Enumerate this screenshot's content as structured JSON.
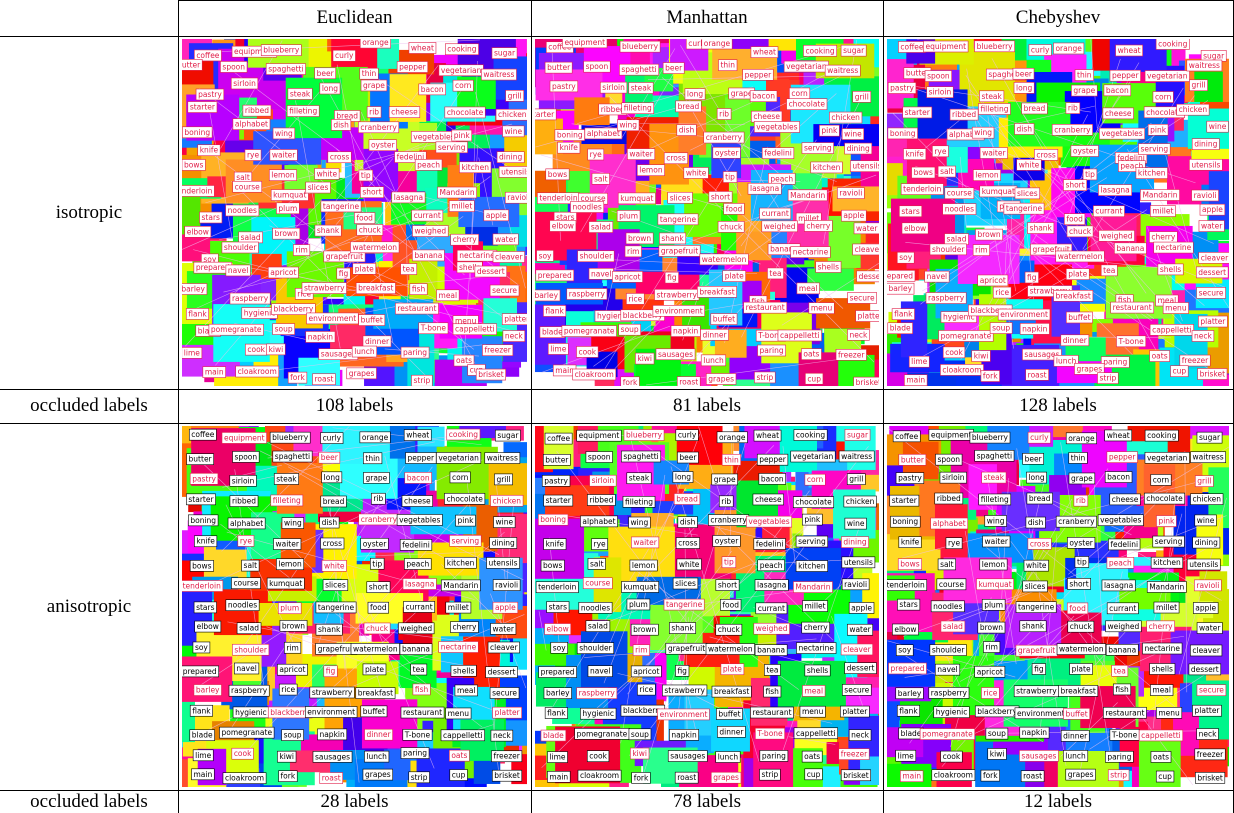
{
  "table": {
    "columns": [
      "Euclidean",
      "Manhattan",
      "Chebyshev"
    ],
    "rows": [
      {
        "label": "isotropic",
        "count_label": "occluded labels",
        "counts": [
          "108 labels",
          "81 labels",
          "128 labels"
        ]
      },
      {
        "label": "anisotropic",
        "count_label": "occluded labels",
        "counts": [
          "28 labels",
          "78 labels",
          "12 labels"
        ]
      }
    ],
    "words": [
      "coffee",
      "equipment",
      "blueberry",
      "curly",
      "orange",
      "wheat",
      "cooking",
      "sugar",
      "butter",
      "spoon",
      "spaghetti",
      "beer",
      "thin",
      "pepper",
      "vegetarian",
      "waitress",
      "pastry",
      "sirloin",
      "steak",
      "long",
      "grape",
      "bacon",
      "corn",
      "grill",
      "starter",
      "ribbed",
      "filleting",
      "bread",
      "rib",
      "cheese",
      "chocolate",
      "chicken",
      "boning",
      "alphabet",
      "wing",
      "dish",
      "cranberry",
      "vegetables",
      "pink",
      "wine",
      "knife",
      "rye",
      "waiter",
      "cross",
      "oyster",
      "fedelini",
      "serving",
      "dining",
      "bows",
      "salt",
      "lemon",
      "white",
      "tip",
      "peach",
      "kitchen",
      "utensils",
      "tenderloin",
      "course",
      "kumquat",
      "slices",
      "short",
      "lasagna",
      "Mandarin",
      "ravioli",
      "stars",
      "noodles",
      "plum",
      "tangerine",
      "food",
      "currant",
      "millet",
      "apple",
      "elbow",
      "salad",
      "brown",
      "shank",
      "chuck",
      "weighed",
      "cherry",
      "water",
      "soy",
      "shoulder",
      "rim",
      "grapefruit",
      "watermelon",
      "banana",
      "nectarine",
      "cleaver",
      "prepared",
      "navel",
      "apricot",
      "fig",
      "plate",
      "tea",
      "shells",
      "dessert",
      "barley",
      "raspberry",
      "rice",
      "strawberry",
      "breakfast",
      "fish",
      "meal",
      "secure",
      "flank",
      "hygienic",
      "blackberry",
      "environment",
      "buffet",
      "restaurant",
      "menu",
      "platter",
      "blade",
      "pomegranate",
      "soup",
      "napkin",
      "dinner",
      "T-bone",
      "cappelletti",
      "neck",
      "lime",
      "cook",
      "kiwi",
      "sausages",
      "lunch",
      "paring",
      "oats",
      "freezer",
      "main",
      "cloakroom",
      "fork",
      "roast",
      "grapes",
      "strip",
      "cup",
      "brisket"
    ]
  }
}
